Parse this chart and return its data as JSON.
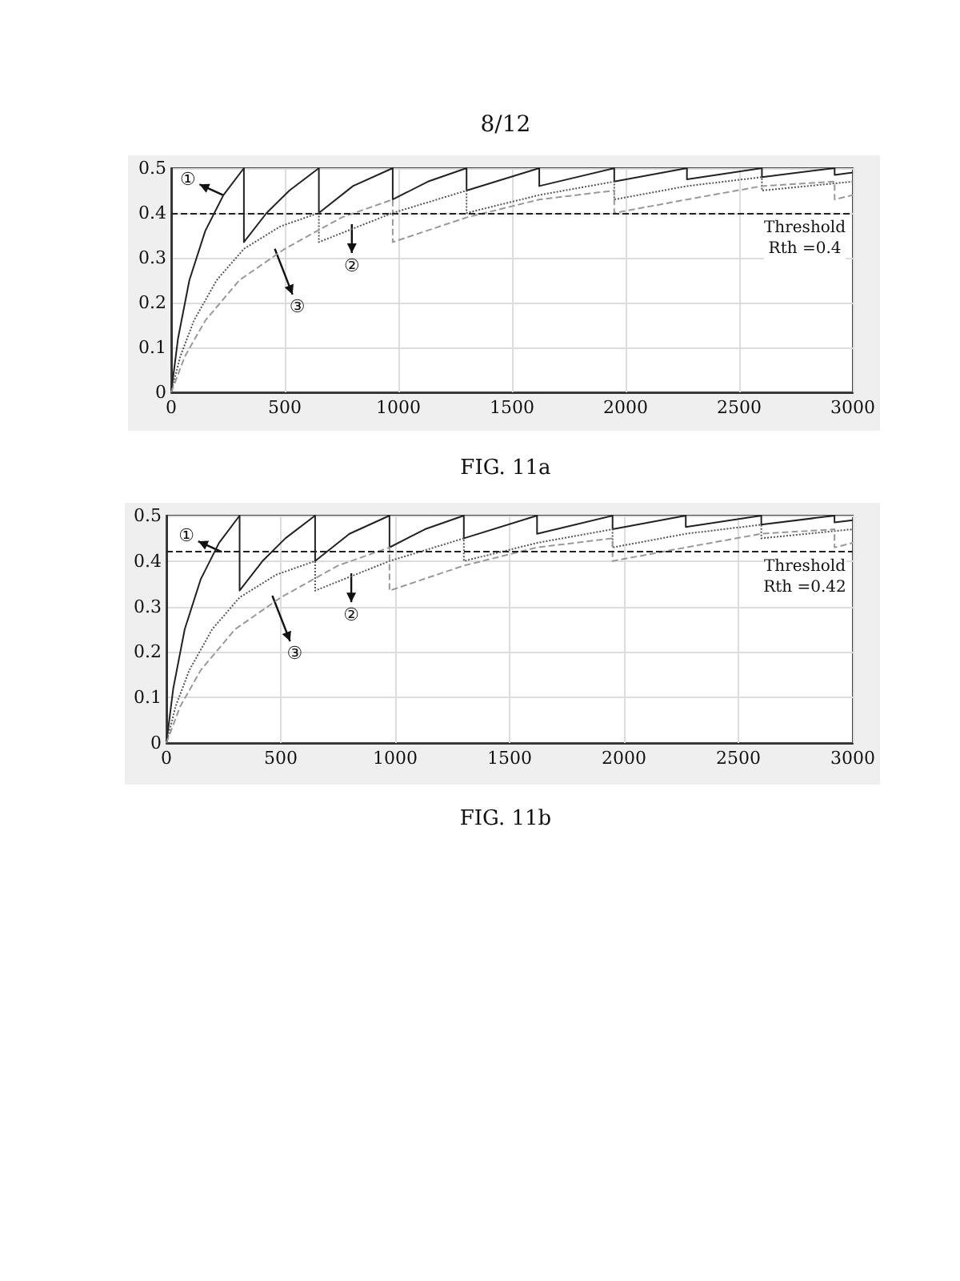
{
  "chart_data": [
    {
      "type": "line",
      "title": "FIG. 11a",
      "annotations": [
        "8/12",
        {
          "text": "①",
          "x": 228,
          "y": 0.44
        },
        {
          "text": "②",
          "x": 795,
          "y": 0.375
        },
        {
          "text": "③",
          "x": 456,
          "y": 0.32
        }
      ],
      "series": [
        {
          "color": "#222222",
          "line_style": "solid",
          "x": [
            0,
            30,
            80,
            150,
            230,
            320,
            320,
            420,
            520,
            650,
            650,
            800,
            975,
            975,
            1130,
            1300,
            1300,
            1620,
            1620,
            1950,
            1950,
            2270,
            2270,
            2600,
            2600,
            2920,
            2920,
            3000
          ],
          "values": [
            0,
            0.12,
            0.25,
            0.36,
            0.44,
            0.5,
            0.335,
            0.4,
            0.45,
            0.5,
            0.4,
            0.46,
            0.5,
            0.43,
            0.47,
            0.5,
            0.45,
            0.5,
            0.46,
            0.5,
            0.47,
            0.5,
            0.475,
            0.5,
            0.48,
            0.5,
            0.485,
            0.49
          ]
        },
        {
          "color": "#555555",
          "line_style": "dotted",
          "x": [
            0,
            40,
            100,
            200,
            320,
            480,
            650,
            650,
            975,
            1300,
            1300,
            1620,
            1950,
            1950,
            2270,
            2600,
            2600,
            3000
          ],
          "values": [
            0,
            0.08,
            0.16,
            0.25,
            0.32,
            0.37,
            0.4,
            0.335,
            0.4,
            0.45,
            0.4,
            0.44,
            0.47,
            0.43,
            0.46,
            0.48,
            0.45,
            0.47
          ]
        },
        {
          "color": "#999999",
          "line_style": "dashed",
          "x": [
            0,
            60,
            150,
            300,
            500,
            750,
            975,
            975,
            1300,
            1620,
            1950,
            1950,
            2270,
            2600,
            2920,
            2920,
            3000
          ],
          "values": [
            0,
            0.08,
            0.16,
            0.25,
            0.32,
            0.39,
            0.43,
            0.335,
            0.39,
            0.43,
            0.45,
            0.4,
            0.43,
            0.46,
            0.47,
            0.43,
            0.44
          ]
        }
      ],
      "xlim": [
        0,
        3000
      ],
      "xticks": [
        0,
        500,
        1000,
        1500,
        2000,
        2500,
        3000
      ],
      "ylim": [
        0,
        0.5
      ],
      "yticks": [
        0,
        0.1,
        0.2,
        0.3,
        0.4,
        0.5
      ],
      "grid": true,
      "marker": "none",
      "ref_lines": [
        {
          "axis": "y",
          "value": 0.4,
          "label": "Threshold\nRth =0.4",
          "color": "#222222",
          "line_style": "dashed"
        }
      ]
    },
    {
      "type": "line",
      "title": "FIG. 11b",
      "annotations": [
        {
          "text": "①",
          "x": 242,
          "y": 0.42
        },
        {
          "text": "②",
          "x": 808,
          "y": 0.373
        },
        {
          "text": "③",
          "x": 463,
          "y": 0.324
        }
      ],
      "series": [
        {
          "color": "#222222",
          "line_style": "solid",
          "x": [
            0,
            30,
            80,
            150,
            230,
            320,
            320,
            420,
            520,
            650,
            650,
            800,
            975,
            975,
            1130,
            1300,
            1300,
            1620,
            1620,
            1950,
            1950,
            2270,
            2270,
            2600,
            2600,
            2920,
            2920,
            3000
          ],
          "values": [
            0,
            0.12,
            0.25,
            0.36,
            0.44,
            0.5,
            0.335,
            0.4,
            0.45,
            0.5,
            0.4,
            0.46,
            0.5,
            0.43,
            0.47,
            0.5,
            0.45,
            0.5,
            0.46,
            0.5,
            0.47,
            0.5,
            0.475,
            0.5,
            0.48,
            0.5,
            0.485,
            0.49
          ]
        },
        {
          "color": "#555555",
          "line_style": "dotted",
          "x": [
            0,
            40,
            100,
            200,
            320,
            480,
            650,
            650,
            975,
            1300,
            1300,
            1620,
            1950,
            1950,
            2270,
            2600,
            2600,
            3000
          ],
          "values": [
            0,
            0.08,
            0.16,
            0.25,
            0.32,
            0.37,
            0.4,
            0.335,
            0.4,
            0.45,
            0.4,
            0.44,
            0.47,
            0.43,
            0.46,
            0.48,
            0.45,
            0.47
          ]
        },
        {
          "color": "#999999",
          "line_style": "dashed",
          "x": [
            0,
            60,
            150,
            300,
            500,
            750,
            975,
            975,
            1300,
            1620,
            1950,
            1950,
            2270,
            2600,
            2920,
            2920,
            3000
          ],
          "values": [
            0,
            0.08,
            0.16,
            0.25,
            0.32,
            0.39,
            0.43,
            0.335,
            0.39,
            0.43,
            0.45,
            0.4,
            0.43,
            0.46,
            0.47,
            0.43,
            0.44
          ]
        }
      ],
      "xlim": [
        0,
        3000
      ],
      "xticks": [
        0,
        500,
        1000,
        1500,
        2000,
        2500,
        3000
      ],
      "ylim": [
        0,
        0.5
      ],
      "yticks": [
        0,
        0.1,
        0.2,
        0.3,
        0.4,
        0.5
      ],
      "grid": true,
      "marker": "none",
      "ref_lines": [
        {
          "axis": "y",
          "value": 0.42,
          "label": "Threshold\nRth =0.42",
          "color": "#222222",
          "line_style": "dashed"
        }
      ]
    }
  ]
}
